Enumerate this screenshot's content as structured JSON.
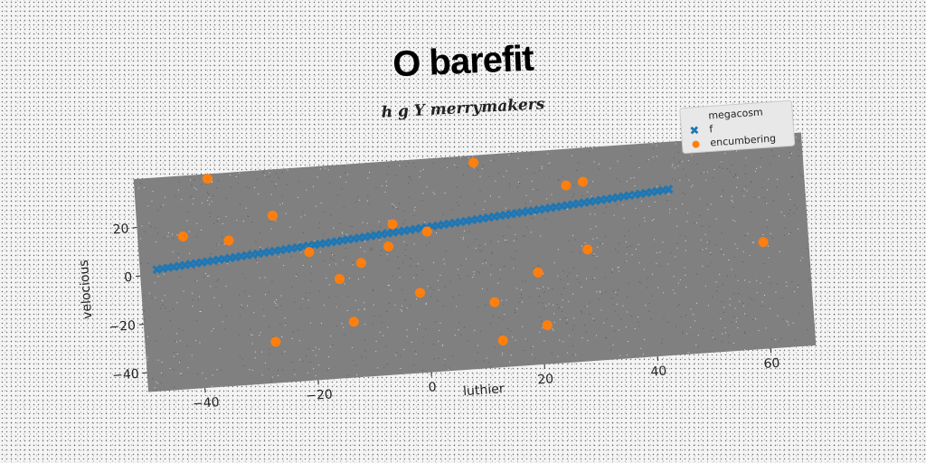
{
  "chart_data": {
    "type": "scatter",
    "title": "O barefit",
    "subtitle": "h g Y merrymakers",
    "xlabel": "luthier",
    "ylabel": "velocious",
    "xlim": [
      -50,
      68
    ],
    "ylim": [
      -48,
      40
    ],
    "xticks": [
      -40,
      -20,
      0,
      20,
      40,
      60
    ],
    "yticks": [
      -40,
      -20,
      0,
      20
    ],
    "grid": false,
    "legend_position": "top-right",
    "colors": {
      "f": "#1f77b4",
      "encumbering": "#ff7f0e",
      "plot_bg": "#808080"
    },
    "series": [
      {
        "name": "megacosm",
        "marker": "none",
        "x": [],
        "y": []
      },
      {
        "name": "f",
        "marker": "X",
        "x": [
          -47,
          -46,
          -45,
          -44,
          -43,
          -42,
          -41,
          -40,
          -39,
          -38,
          -37,
          -36,
          -35,
          -34,
          -33,
          -32,
          -31,
          -30,
          -29,
          -28,
          -27,
          -26,
          -25,
          -24,
          -23,
          -22,
          -21,
          -20,
          -19,
          -18,
          -17,
          -16,
          -15,
          -14,
          -13,
          -12,
          -11,
          -10,
          -9,
          -8,
          -7,
          -6,
          -5,
          -4,
          -3,
          -2,
          -1,
          0,
          1,
          2,
          3,
          4,
          5,
          6,
          7,
          8,
          9,
          10,
          11,
          12,
          13,
          14,
          15,
          16,
          17,
          18,
          19,
          20,
          21,
          22,
          23,
          24,
          25,
          26,
          27,
          28,
          29,
          30,
          31,
          32,
          33,
          34,
          35,
          36,
          37,
          38,
          39,
          40,
          41,
          42,
          43,
          44
        ],
        "y": [
          2,
          2.2,
          2.4,
          2.6,
          2.8,
          3,
          3.2,
          3.4,
          3.6,
          3.8,
          4,
          4.2,
          4.4,
          4.6,
          4.8,
          5,
          5.2,
          5.4,
          5.6,
          5.8,
          6,
          6.2,
          6.4,
          6.6,
          6.8,
          7,
          7.2,
          7.4,
          7.6,
          7.8,
          8,
          8.2,
          8.4,
          8.6,
          8.8,
          9,
          9.2,
          9.4,
          9.6,
          9.8,
          10,
          10.2,
          10.4,
          10.6,
          10.8,
          11,
          11.2,
          11.4,
          11.6,
          11.8,
          12,
          12.2,
          12.4,
          12.6,
          12.8,
          13,
          13.2,
          13.4,
          13.6,
          13.8,
          14,
          14.2,
          14.4,
          14.6,
          14.8,
          15,
          15.2,
          15.4,
          15.6,
          15.8,
          16,
          16.2,
          16.4,
          16.6,
          16.8,
          17,
          17.2,
          17.4,
          17.6,
          17.8,
          18,
          18.2,
          18.4,
          18.6,
          18.8,
          19,
          19.2,
          19.4,
          19.6,
          19.8,
          20,
          20.2
        ]
      },
      {
        "name": "encumbering",
        "marker": "o",
        "x": [
          -42,
          -37,
          -34,
          -26,
          -20,
          -15,
          -11,
          -6,
          -5,
          1,
          10,
          12,
          13,
          21,
          20,
          26,
          29,
          29,
          60,
          -27,
          -13,
          -1,
          1
        ],
        "y": [
          15,
          38,
          12,
          21,
          5,
          -7,
          -1,
          5,
          14,
          10,
          37,
          -21,
          -37,
          -32,
          -10,
          25,
          26,
          -2,
          -4,
          -31,
          -25,
          -15,
          10
        ]
      }
    ]
  }
}
